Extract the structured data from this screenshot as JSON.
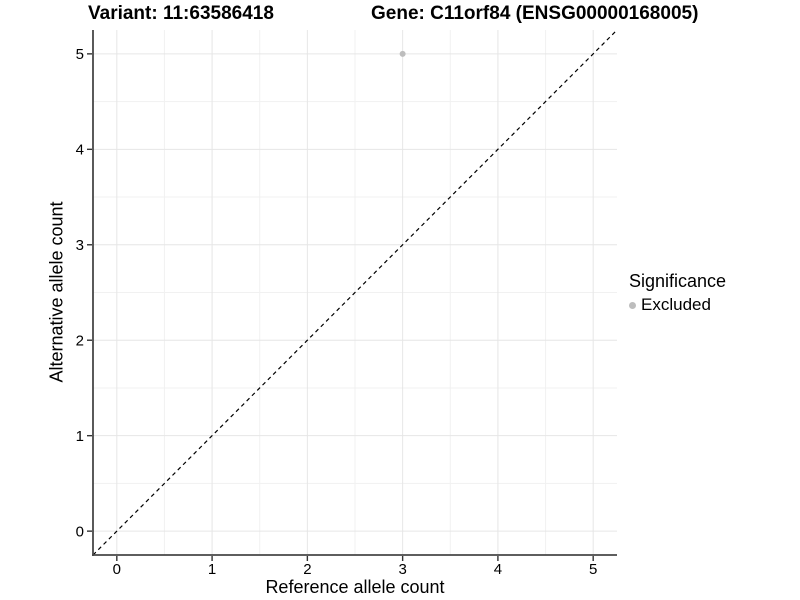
{
  "titles": {
    "variant": "Variant: 11:63586418",
    "gene": "Gene: C11orf84 (ENSG00000168005)"
  },
  "axes": {
    "x": {
      "label": "Reference allele count"
    },
    "y": {
      "label": "Alternative allele count"
    }
  },
  "legend": {
    "title": "Significance",
    "items": [
      {
        "label": "Excluded",
        "color": "#bdbdbd"
      }
    ]
  },
  "chart_data": {
    "type": "scatter",
    "title": "Variant: 11:63586418 | Gene: C11orf84 (ENSG00000168005)",
    "xlabel": "Reference allele count",
    "ylabel": "Alternative allele count",
    "xlim": [
      -0.25,
      5.25
    ],
    "ylim": [
      -0.25,
      5.25
    ],
    "x_ticks": [
      0,
      1,
      2,
      3,
      4,
      5
    ],
    "y_ticks": [
      0,
      1,
      2,
      3,
      4,
      5
    ],
    "grid": "on",
    "minor_grid": "on",
    "legend_position": "right",
    "series": [
      {
        "name": "Excluded",
        "color": "#bdbdbd",
        "marker": "circle",
        "points": [
          [
            3,
            5
          ]
        ]
      }
    ],
    "reference_line": {
      "slope": 1,
      "intercept": 0,
      "style": "dashed",
      "color": "#000000"
    }
  },
  "style": {
    "background": "#ffffff",
    "grid_major_color": "#e6e6e6",
    "grid_minor_color": "#f1f1f1",
    "axis_line_color": "#474747",
    "tick_color": "#333333",
    "tick_label_color": "#000000",
    "point_color": "#bdbdbd"
  }
}
